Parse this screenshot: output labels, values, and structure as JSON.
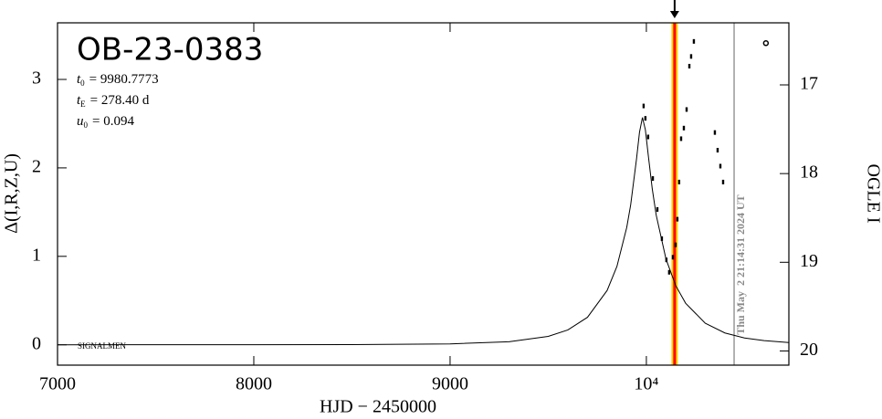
{
  "chart_data": {
    "type": "line",
    "title": "OB-23-0383",
    "parameters": [
      {
        "symbol": "t",
        "sub": "0",
        "text": "= 9980.7773"
      },
      {
        "symbol": "t",
        "sub": "E",
        "text": "= 278.40 d"
      },
      {
        "symbol": "u",
        "sub": "0",
        "text": "= 0.094"
      }
    ],
    "x_label": "HJD − 2450000",
    "y_label": "Δ(I,R,Z,U)",
    "y2_label": "OGLE I",
    "footnote": "SIGNALMEN",
    "timestamp": "Thu May  2 21:14:31 2024 UT",
    "xlim": [
      7000,
      10726
    ],
    "xticks": [
      7000,
      8000,
      9000,
      {
        "value": 10000,
        "label": "10⁴"
      }
    ],
    "ylim": [
      -0.23,
      3.64
    ],
    "yticks": [
      0,
      1,
      2,
      3
    ],
    "y2lim": [
      20.16,
      16.3
    ],
    "y2ticks": [
      17,
      18,
      19,
      20
    ],
    "markers": [
      {
        "x": 10144,
        "color": "#ff0000"
      },
      {
        "x": 10447,
        "color": "#999999"
      }
    ],
    "series": [
      {
        "type": "line",
        "color": "#000000",
        "x": [
          7000,
          8000,
          8500,
          9000,
          9300,
          9500,
          9600,
          9700,
          9800,
          9850,
          9900,
          9920,
          9950,
          9965,
          9980,
          9995,
          10010,
          10030,
          10050,
          10100,
          10150,
          10200,
          10300,
          10400,
          10500,
          10600,
          10726
        ],
        "values": [
          0.0002,
          0.0008,
          0.0027,
          0.0106,
          0.035,
          0.095,
          0.168,
          0.311,
          0.614,
          0.886,
          1.327,
          1.582,
          2.104,
          2.403,
          2.57,
          2.431,
          2.137,
          1.763,
          1.467,
          0.969,
          0.667,
          0.47,
          0.244,
          0.134,
          0.0773,
          0.047,
          0.026
        ]
      },
      {
        "type": "scatter",
        "color": "#000000",
        "marker": "dash",
        "x": [
          9986,
          9995,
          10009,
          10033,
          10056,
          10079,
          10102,
          10116,
          10135,
          10149,
          10158,
          10167,
          10177,
          10191,
          10205,
          10219,
          10228,
          10242,
          10349,
          10363,
          10377,
          10391
        ],
        "values": [
          2.7,
          2.56,
          2.35,
          1.88,
          1.53,
          1.2,
          0.96,
          0.82,
          0.99,
          1.13,
          1.42,
          1.84,
          2.33,
          2.45,
          2.66,
          3.15,
          3.26,
          3.43,
          2.4,
          2.2,
          2.02,
          1.84
        ]
      },
      {
        "type": "scatter",
        "color": "#000000",
        "marker": "circle",
        "x": [
          10609
        ],
        "values": [
          3.41
        ]
      }
    ]
  }
}
